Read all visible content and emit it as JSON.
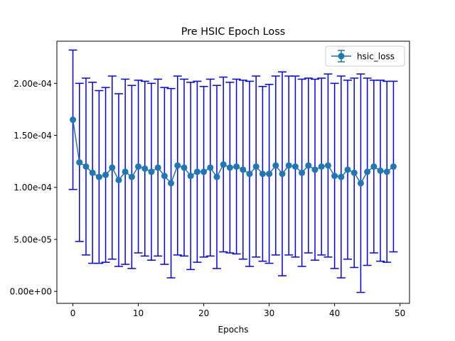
{
  "chart_data": {
    "type": "line",
    "title": "Pre HSIC Epoch Loss",
    "xlabel": "Epochs",
    "ylabel": "",
    "xlim": [
      -2.45,
      51.45
    ],
    "ylim": [
      -1.15e-05,
      0.0002405
    ],
    "x_ticks": [
      0,
      10,
      20,
      30,
      40,
      50
    ],
    "y_ticks": [
      0,
      5e-05,
      0.0001,
      0.00015,
      0.0002
    ],
    "y_tick_labels": [
      "0.00e+00",
      "5.00e-05",
      "1.00e-04",
      "1.50e-04",
      "2.00e-04"
    ],
    "grid": false,
    "legend_position": "top-right",
    "series": [
      {
        "name": "hsic_loss",
        "line_color": "#1f77b4",
        "errorbar_color": "#0000ff",
        "x": [
          0,
          1,
          2,
          3,
          4,
          5,
          6,
          7,
          8,
          9,
          10,
          11,
          12,
          13,
          14,
          15,
          16,
          17,
          18,
          19,
          20,
          21,
          22,
          23,
          24,
          25,
          26,
          27,
          28,
          29,
          30,
          31,
          32,
          33,
          34,
          35,
          36,
          37,
          38,
          39,
          40,
          41,
          42,
          43,
          44,
          45,
          46,
          47,
          48,
          49
        ],
        "values": [
          0.000165,
          0.000124,
          0.00012,
          0.000114,
          0.00011,
          0.000112,
          0.000119,
          0.000107,
          0.000115,
          0.00011,
          0.00012,
          0.000118,
          0.000115,
          0.000119,
          0.000111,
          0.000104,
          0.000121,
          0.000119,
          0.000111,
          0.000115,
          0.000115,
          0.000119,
          0.00011,
          0.000122,
          0.000119,
          0.00012,
          0.000117,
          0.000113,
          0.00012,
          0.000113,
          0.000113,
          0.000121,
          0.000113,
          0.000121,
          0.00012,
          0.000114,
          0.000121,
          0.000117,
          0.00012,
          0.000121,
          0.000111,
          0.00011,
          0.000117,
          0.000114,
          0.000104,
          0.000115,
          0.00012,
          0.000116,
          0.000115,
          0.00012
        ],
        "errors": [
          6.7e-05,
          7.6e-05,
          8.5e-05,
          8.7e-05,
          8.3e-05,
          8.4e-05,
          8.8e-05,
          8.3e-05,
          8.9e-05,
          8.8e-05,
          8.3e-05,
          8.4e-05,
          8.5e-05,
          8.5e-05,
          8.5e-05,
          9.1e-05,
          8.6e-05,
          8.5e-05,
          9e-05,
          8.7e-05,
          8.2e-05,
          8.5e-05,
          8.8e-05,
          8.4e-05,
          8.2e-05,
          8.4e-05,
          8.6e-05,
          8.9e-05,
          8.7e-05,
          8.4e-05,
          8.6e-05,
          8.6e-05,
          9.8e-05,
          8.6e-05,
          8.7e-05,
          9e-05,
          8.4e-05,
          8.7e-05,
          8.5e-05,
          8.8e-05,
          8.9e-05,
          9.7e-05,
          8.6e-05,
          9.1e-05,
          0.000105,
          9e-05,
          8.3e-05,
          8.7e-05,
          8.7e-05,
          8.2e-05
        ]
      }
    ]
  }
}
